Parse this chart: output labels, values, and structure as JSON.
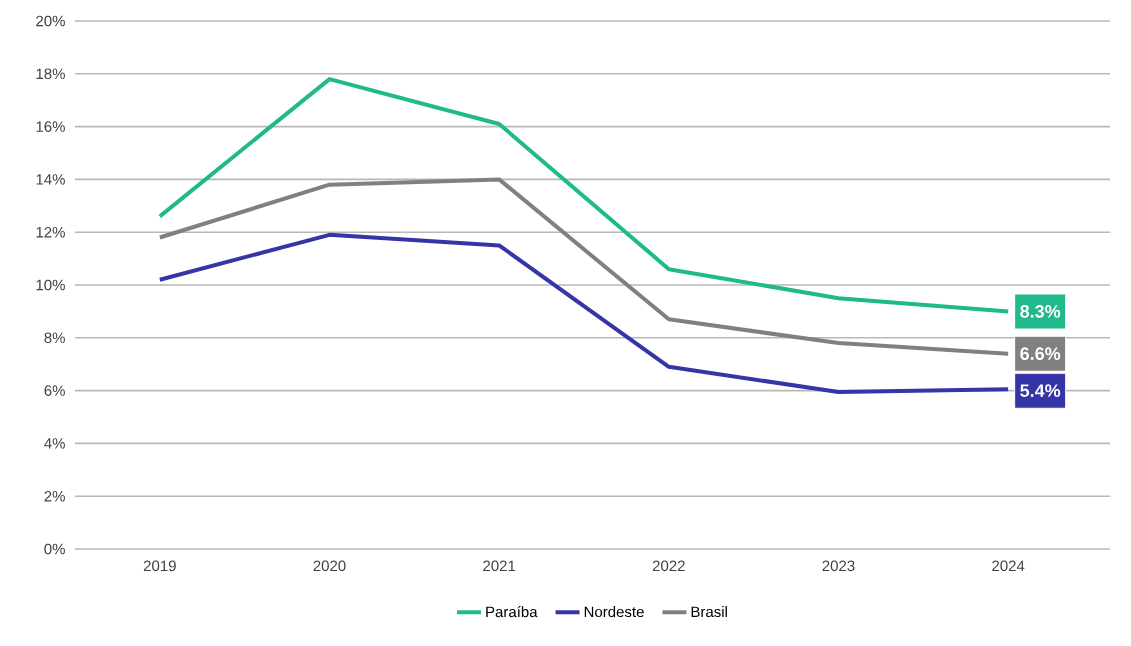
{
  "chart_data": {
    "type": "line",
    "categories": [
      "2019",
      "2020",
      "2021",
      "2022",
      "2023",
      "2024"
    ],
    "series": [
      {
        "name": "Paraíba",
        "color": "#1fb98c",
        "values": [
          12.6,
          17.8,
          16.1,
          10.6,
          9.5,
          9.0
        ]
      },
      {
        "name": "Nordeste",
        "color": "#3535a8",
        "values": [
          10.2,
          11.9,
          11.5,
          6.9,
          5.95,
          6.05
        ]
      },
      {
        "name": "Brasil",
        "color": "#808080",
        "values": [
          11.8,
          13.8,
          14.0,
          8.7,
          7.8,
          7.4
        ]
      }
    ],
    "annotations": [
      "8.3%",
      "5.4%",
      "6.6%"
    ],
    "ylim": [
      0,
      20
    ],
    "yticks": [
      {
        "value": 0,
        "label": "0%"
      },
      {
        "value": 2,
        "label": "2%"
      },
      {
        "value": 4,
        "label": "4%"
      },
      {
        "value": 6,
        "label": "6%"
      },
      {
        "value": 8,
        "label": "8%"
      },
      {
        "value": 10,
        "label": "10%"
      },
      {
        "value": 12,
        "label": "12%"
      },
      {
        "value": 14,
        "label": "14%"
      },
      {
        "value": 16,
        "label": "16%"
      },
      {
        "value": 18,
        "label": "18%"
      },
      {
        "value": 20,
        "label": "20%"
      }
    ],
    "grid": "y",
    "legend": "bottom",
    "marker": "none",
    "line_style": "solid"
  }
}
